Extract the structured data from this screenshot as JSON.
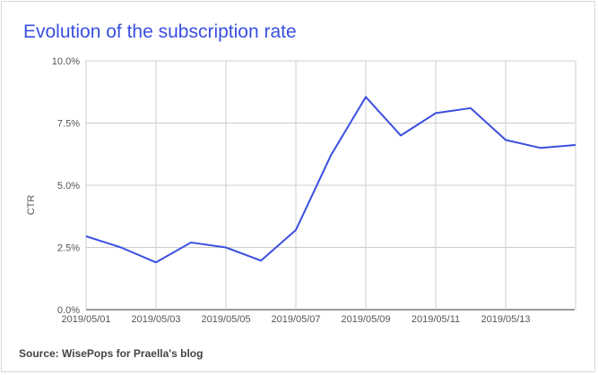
{
  "chart_data": {
    "type": "line",
    "title": "Evolution of the subscription rate",
    "ylabel": "CTR",
    "xlabel": "",
    "ylim": [
      0,
      10
    ],
    "yticks": [
      "0.0%",
      "2.5%",
      "5.0%",
      "7.5%",
      "10.0%"
    ],
    "ytick_values": [
      0,
      2.5,
      5,
      7.5,
      10
    ],
    "xticks": [
      "2019/05/01",
      "2019/05/03",
      "2019/05/05",
      "2019/05/07",
      "2019/05/09",
      "2019/05/11",
      "2019/05/13"
    ],
    "x": [
      "2019/05/01",
      "2019/05/02",
      "2019/05/03",
      "2019/05/04",
      "2019/05/05",
      "2019/05/06",
      "2019/05/07",
      "2019/05/08",
      "2019/05/09",
      "2019/05/10",
      "2019/05/11",
      "2019/05/12",
      "2019/05/13",
      "2019/05/14",
      "2019/05/15"
    ],
    "series": [
      {
        "values": [
          2.95,
          2.5,
          1.9,
          2.7,
          2.5,
          1.97,
          3.2,
          6.2,
          8.55,
          7.0,
          7.9,
          8.1,
          6.82,
          6.5,
          6.62
        ]
      }
    ],
    "grid": true,
    "line_color": "#3a4fe0"
  },
  "source": "Source: WisePops for Praella's blog"
}
